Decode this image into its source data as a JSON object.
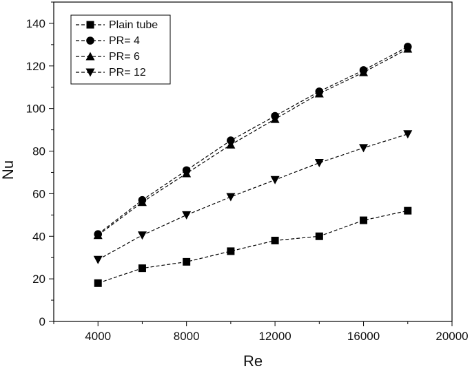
{
  "chart_data": {
    "type": "line",
    "xlabel": "Re",
    "ylabel": "Nu",
    "xlim": [
      2000,
      20000
    ],
    "ylim": [
      0,
      150
    ],
    "xticks": [
      4000,
      8000,
      12000,
      16000,
      20000
    ],
    "yticks": [
      0,
      20,
      40,
      60,
      80,
      100,
      120,
      140
    ],
    "grid": false,
    "legend_position": "top-left",
    "line_style": "dashed",
    "color": "#000000",
    "series": [
      {
        "name": "Plain tube",
        "marker": "square",
        "x": [
          4000,
          6000,
          8000,
          10000,
          12000,
          14000,
          16000,
          18000
        ],
        "y": [
          18,
          25,
          28,
          33,
          38,
          40,
          47.5,
          52
        ]
      },
      {
        "name": "PR= 4",
        "marker": "circle",
        "x": [
          4000,
          6000,
          8000,
          10000,
          12000,
          14000,
          16000,
          18000
        ],
        "y": [
          41,
          57,
          71,
          85,
          96.5,
          108,
          118,
          129
        ]
      },
      {
        "name": "PR= 6",
        "marker": "triangle-up",
        "x": [
          4000,
          6000,
          8000,
          10000,
          12000,
          14000,
          16000,
          18000
        ],
        "y": [
          40.5,
          56,
          69.5,
          83,
          95,
          107,
          117,
          128
        ]
      },
      {
        "name": "PR= 12",
        "marker": "triangle-down",
        "x": [
          4000,
          6000,
          8000,
          10000,
          12000,
          14000,
          16000,
          18000
        ],
        "y": [
          29,
          40.5,
          50,
          58.5,
          66.5,
          74.5,
          81.5,
          88
        ]
      }
    ]
  }
}
